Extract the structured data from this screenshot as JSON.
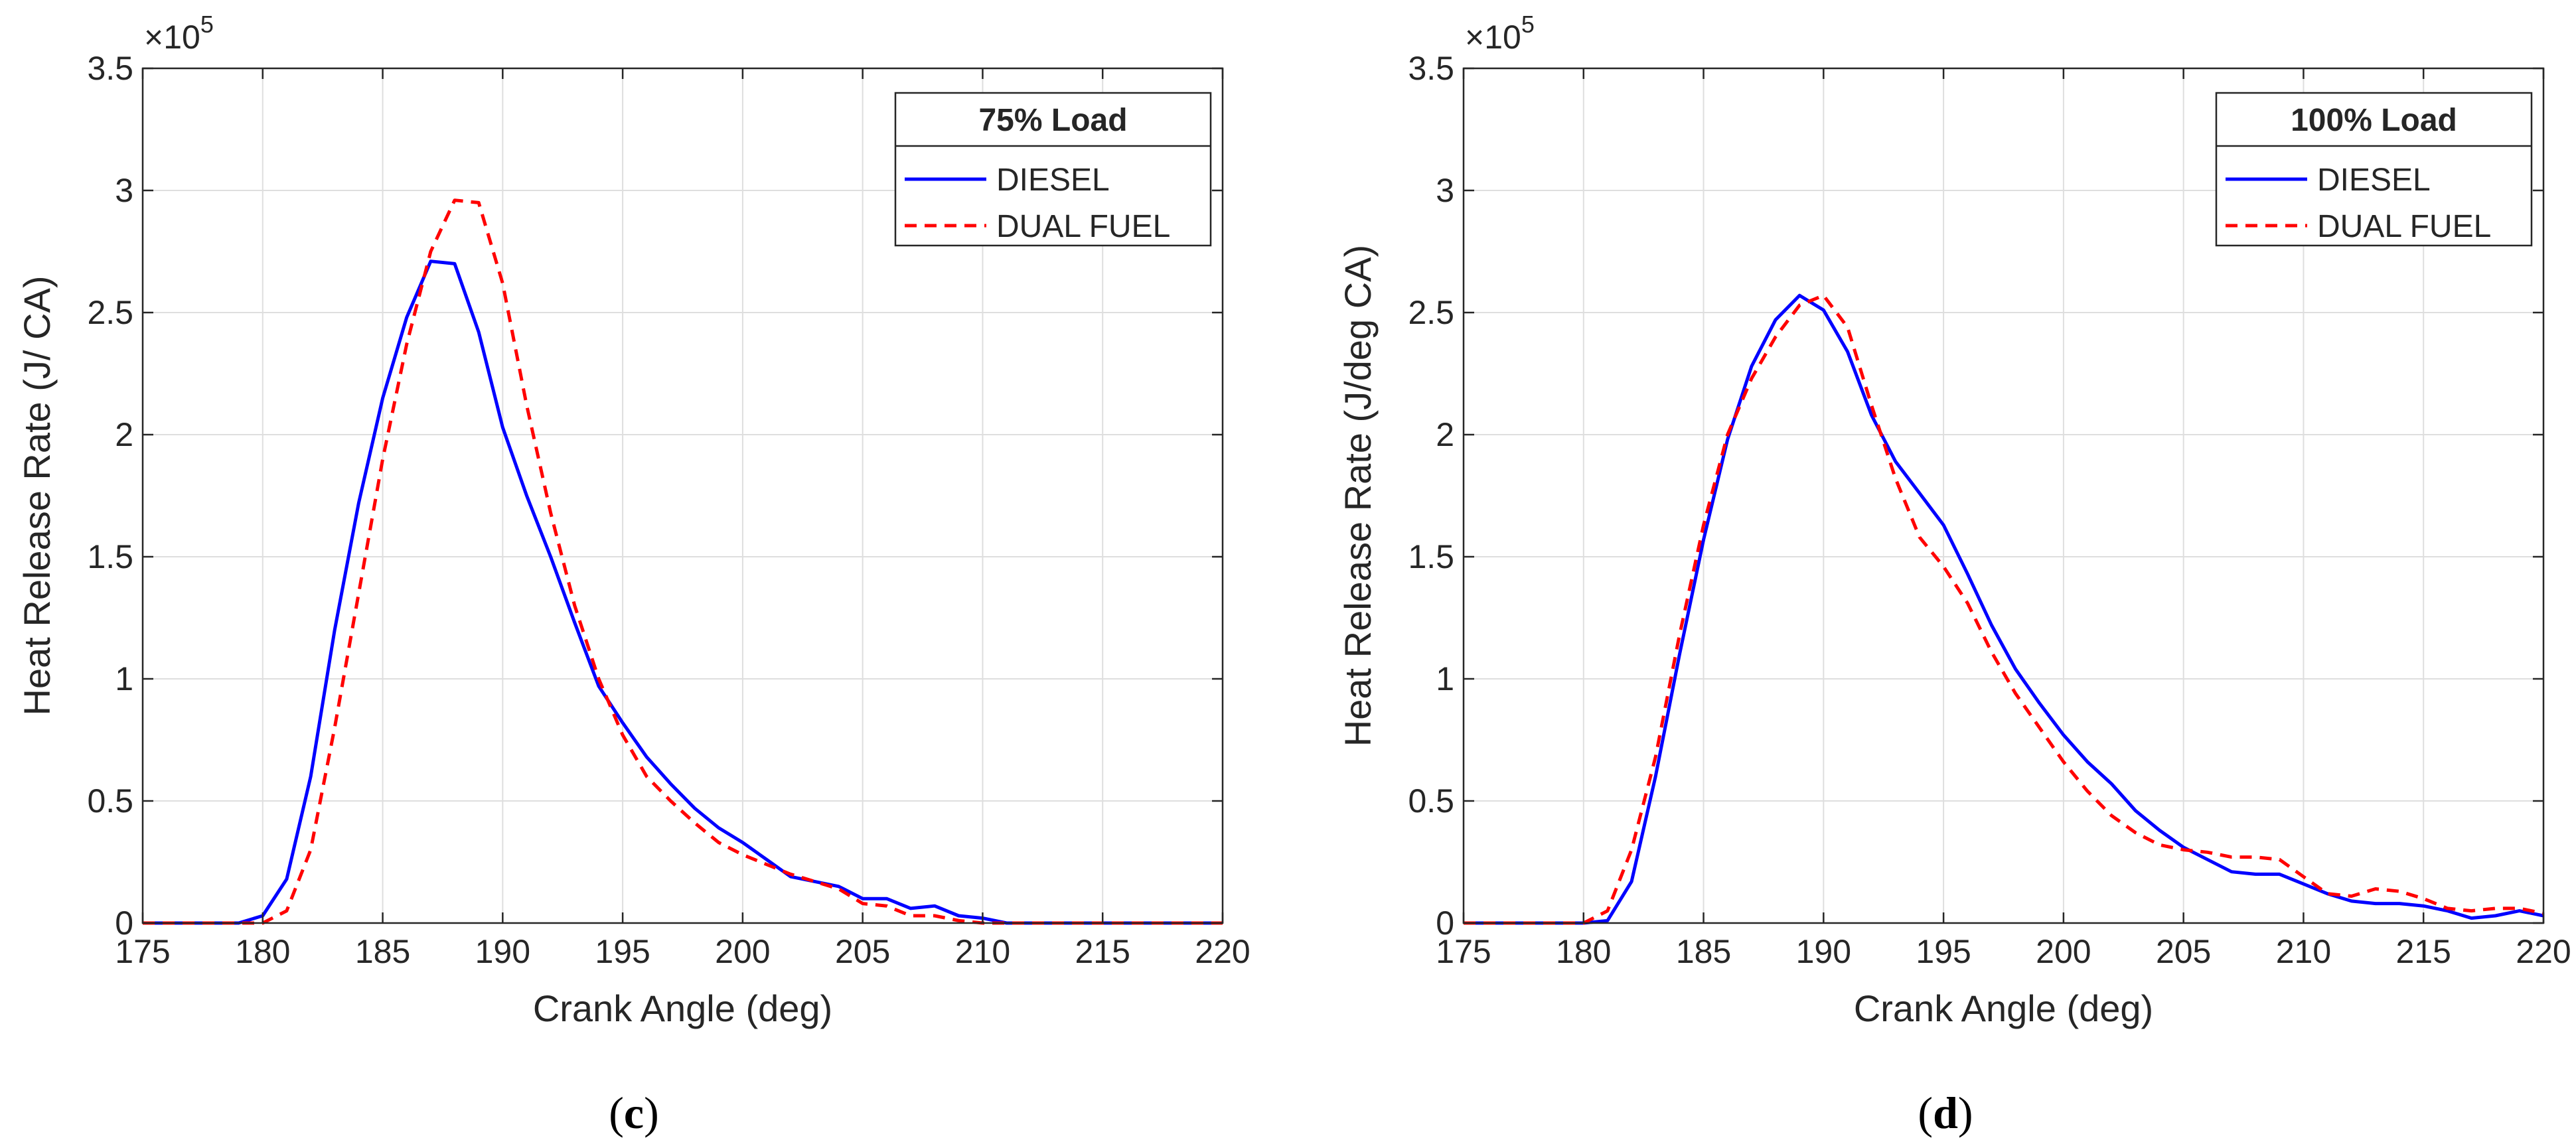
{
  "chart_data": [
    {
      "type": "line",
      "panel_label": "c",
      "xlabel": "Crank Angle (deg)",
      "ylabel": "Heat Release Rate (J/ CA)",
      "y_exponent_label": "×10",
      "y_exponent_power": "5",
      "xlim": [
        175,
        220
      ],
      "ylim": [
        0,
        350000
      ],
      "x_ticks": [
        175,
        180,
        185,
        190,
        195,
        200,
        205,
        210,
        215,
        220
      ],
      "x_tick_labels": [
        "175",
        "180",
        "185",
        "190",
        "195",
        "200",
        "205",
        "210",
        "215",
        "220"
      ],
      "y_ticks": [
        0,
        50000,
        100000,
        150000,
        200000,
        250000,
        300000,
        350000
      ],
      "y_tick_labels": [
        "0",
        "0.5",
        "1",
        "1.5",
        "2",
        "2.5",
        "3",
        "3.5"
      ],
      "grid": true,
      "legend": {
        "title": "75% Load",
        "placement": "top-right"
      },
      "series": [
        {
          "name": "DIESEL",
          "color": "#0000ff",
          "style": "solid",
          "points": [
            [
              175,
              0
            ],
            [
              176,
              0
            ],
            [
              177,
              0
            ],
            [
              178,
              0
            ],
            [
              179,
              0
            ],
            [
              180,
              3000
            ],
            [
              181,
              18000
            ],
            [
              182,
              60000
            ],
            [
              183,
              120000
            ],
            [
              184,
              172000
            ],
            [
              185,
              215000
            ],
            [
              186,
              248000
            ],
            [
              187,
              271000
            ],
            [
              188,
              270000
            ],
            [
              189,
              242000
            ],
            [
              190,
              203000
            ],
            [
              191,
              175000
            ],
            [
              192,
              150000
            ],
            [
              193,
              123000
            ],
            [
              194,
              97000
            ],
            [
              195,
              82000
            ],
            [
              196,
              68000
            ],
            [
              197,
              57000
            ],
            [
              198,
              47000
            ],
            [
              199,
              39000
            ],
            [
              200,
              33000
            ],
            [
              201,
              26000
            ],
            [
              202,
              19000
            ],
            [
              203,
              17000
            ],
            [
              204,
              15000
            ],
            [
              205,
              10000
            ],
            [
              206,
              10000
            ],
            [
              207,
              6000
            ],
            [
              208,
              7000
            ],
            [
              209,
              3000
            ],
            [
              210,
              2000
            ],
            [
              211,
              0
            ],
            [
              212,
              0
            ],
            [
              213,
              0
            ],
            [
              214,
              0
            ],
            [
              215,
              0
            ],
            [
              216,
              0
            ],
            [
              217,
              0
            ],
            [
              218,
              0
            ],
            [
              219,
              0
            ],
            [
              220,
              0
            ]
          ]
        },
        {
          "name": "DUAL FUEL",
          "color": "#ff0000",
          "style": "dashed",
          "points": [
            [
              175,
              0
            ],
            [
              176,
              0
            ],
            [
              177,
              0
            ],
            [
              178,
              0
            ],
            [
              179,
              0
            ],
            [
              180,
              0
            ],
            [
              181,
              5000
            ],
            [
              182,
              30000
            ],
            [
              183,
              80000
            ],
            [
              184,
              135000
            ],
            [
              185,
              190000
            ],
            [
              186,
              237000
            ],
            [
              187,
              275000
            ],
            [
              188,
              296000
            ],
            [
              189,
              295000
            ],
            [
              190,
              262000
            ],
            [
              191,
              212000
            ],
            [
              192,
              168000
            ],
            [
              193,
              130000
            ],
            [
              194,
              100000
            ],
            [
              195,
              77000
            ],
            [
              196,
              60000
            ],
            [
              197,
              50000
            ],
            [
              198,
              41000
            ],
            [
              199,
              33000
            ],
            [
              200,
              28000
            ],
            [
              201,
              24000
            ],
            [
              202,
              20000
            ],
            [
              203,
              17000
            ],
            [
              204,
              14000
            ],
            [
              205,
              8000
            ],
            [
              206,
              7000
            ],
            [
              207,
              3000
            ],
            [
              208,
              3000
            ],
            [
              209,
              1000
            ],
            [
              210,
              0
            ],
            [
              211,
              0
            ],
            [
              212,
              0
            ],
            [
              213,
              0
            ],
            [
              214,
              0
            ],
            [
              215,
              0
            ],
            [
              216,
              0
            ],
            [
              217,
              0
            ],
            [
              218,
              0
            ],
            [
              219,
              0
            ],
            [
              220,
              0
            ]
          ]
        }
      ]
    },
    {
      "type": "line",
      "panel_label": "d",
      "xlabel": "Crank Angle (deg)",
      "ylabel": "Heat Release Rate (J/deg CA)",
      "y_exponent_label": "×10",
      "y_exponent_power": "5",
      "xlim": [
        175,
        220
      ],
      "ylim": [
        0,
        350000
      ],
      "x_ticks": [
        175,
        180,
        185,
        190,
        195,
        200,
        205,
        210,
        215,
        220
      ],
      "x_tick_labels": [
        "175",
        "180",
        "185",
        "190",
        "195",
        "200",
        "205",
        "210",
        "215",
        "220"
      ],
      "y_ticks": [
        0,
        50000,
        100000,
        150000,
        200000,
        250000,
        300000,
        350000
      ],
      "y_tick_labels": [
        "0",
        "0.5",
        "1",
        "1.5",
        "2",
        "2.5",
        "3",
        "3.5"
      ],
      "grid": true,
      "legend": {
        "title": "100% Load",
        "placement": "top-right"
      },
      "series": [
        {
          "name": "DIESEL",
          "color": "#0000ff",
          "style": "solid",
          "points": [
            [
              175,
              0
            ],
            [
              176,
              0
            ],
            [
              177,
              0
            ],
            [
              178,
              0
            ],
            [
              179,
              0
            ],
            [
              180,
              0
            ],
            [
              181,
              1000
            ],
            [
              182,
              17000
            ],
            [
              183,
              60000
            ],
            [
              184,
              110000
            ],
            [
              185,
              157000
            ],
            [
              186,
              198000
            ],
            [
              187,
              228000
            ],
            [
              188,
              247000
            ],
            [
              189,
              257000
            ],
            [
              190,
              251000
            ],
            [
              191,
              234000
            ],
            [
              192,
              208000
            ],
            [
              193,
              189000
            ],
            [
              194,
              176000
            ],
            [
              195,
              163000
            ],
            [
              196,
              143000
            ],
            [
              197,
              122000
            ],
            [
              198,
              104000
            ],
            [
              199,
              90000
            ],
            [
              200,
              77000
            ],
            [
              201,
              66000
            ],
            [
              202,
              57000
            ],
            [
              203,
              46000
            ],
            [
              204,
              38000
            ],
            [
              205,
              31000
            ],
            [
              206,
              26000
            ],
            [
              207,
              21000
            ],
            [
              208,
              20000
            ],
            [
              209,
              20000
            ],
            [
              210,
              16000
            ],
            [
              211,
              12000
            ],
            [
              212,
              9000
            ],
            [
              213,
              8000
            ],
            [
              214,
              8000
            ],
            [
              215,
              7000
            ],
            [
              216,
              5000
            ],
            [
              217,
              2000
            ],
            [
              218,
              3000
            ],
            [
              219,
              5000
            ],
            [
              220,
              3000
            ]
          ]
        },
        {
          "name": "DUAL FUEL",
          "color": "#ff0000",
          "style": "dashed",
          "points": [
            [
              175,
              0
            ],
            [
              176,
              0
            ],
            [
              177,
              0
            ],
            [
              178,
              0
            ],
            [
              179,
              0
            ],
            [
              180,
              0
            ],
            [
              181,
              5000
            ],
            [
              182,
              30000
            ],
            [
              183,
              68000
            ],
            [
              184,
              118000
            ],
            [
              185,
              163000
            ],
            [
              186,
              200000
            ],
            [
              187,
              223000
            ],
            [
              188,
              240000
            ],
            [
              189,
              253000
            ],
            [
              190,
              257000
            ],
            [
              191,
              244000
            ],
            [
              192,
              212000
            ],
            [
              193,
              182000
            ],
            [
              194,
              158000
            ],
            [
              195,
              146000
            ],
            [
              196,
              131000
            ],
            [
              197,
              111000
            ],
            [
              198,
              94000
            ],
            [
              199,
              80000
            ],
            [
              200,
              66000
            ],
            [
              201,
              54000
            ],
            [
              202,
              44000
            ],
            [
              203,
              37000
            ],
            [
              204,
              32000
            ],
            [
              205,
              30000
            ],
            [
              206,
              29000
            ],
            [
              207,
              27000
            ],
            [
              208,
              27000
            ],
            [
              209,
              26000
            ],
            [
              210,
              19000
            ],
            [
              211,
              12000
            ],
            [
              212,
              11000
            ],
            [
              213,
              14000
            ],
            [
              214,
              13000
            ],
            [
              215,
              10000
            ],
            [
              216,
              6000
            ],
            [
              217,
              5000
            ],
            [
              218,
              6000
            ],
            [
              219,
              6000
            ],
            [
              220,
              4000
            ]
          ]
        }
      ]
    }
  ]
}
